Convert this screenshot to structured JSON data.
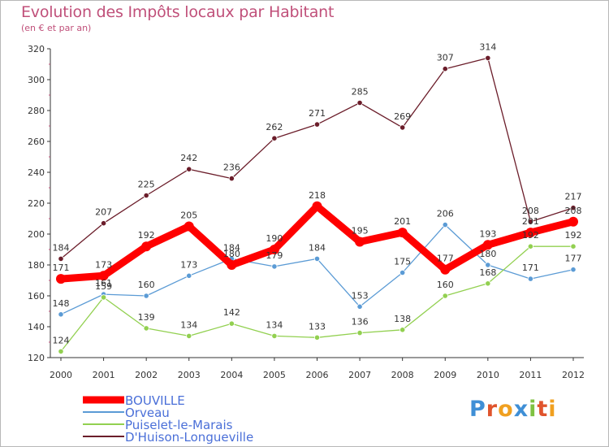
{
  "header": {
    "title": "Evolution des Impôts locaux par Habitant",
    "subtitle": "(en € et par an)"
  },
  "logo": {
    "text": "Proxiti"
  },
  "chart_data": {
    "type": "line",
    "x": [
      2000,
      2001,
      2002,
      2003,
      2004,
      2005,
      2006,
      2007,
      2008,
      2009,
      2010,
      2011,
      2012
    ],
    "ylim": [
      120,
      320
    ],
    "yticks": [
      120,
      140,
      160,
      180,
      200,
      220,
      240,
      260,
      280,
      300,
      320
    ],
    "grid": false,
    "legend_position": "bottom-left",
    "series": [
      {
        "name": "BOUVILLE",
        "color": "#ff0000",
        "values": [
          171,
          173,
          192,
          205,
          180,
          190,
          218,
          195,
          201,
          177,
          193,
          201,
          208
        ]
      },
      {
        "name": "Orveau",
        "color": "#5b9bd5",
        "values": [
          148,
          161,
          160,
          173,
          184,
          179,
          184,
          153,
          175,
          206,
          180,
          171,
          177
        ]
      },
      {
        "name": "Puiselet-le-Marais",
        "color": "#92d050",
        "values": [
          124,
          159,
          139,
          134,
          142,
          134,
          133,
          136,
          138,
          160,
          168,
          192,
          192
        ]
      },
      {
        "name": "D'Huison-Longueville",
        "color": "#6b1d2a",
        "values": [
          184,
          207,
          225,
          242,
          236,
          262,
          271,
          285,
          269,
          307,
          314,
          208,
          217
        ]
      }
    ]
  }
}
